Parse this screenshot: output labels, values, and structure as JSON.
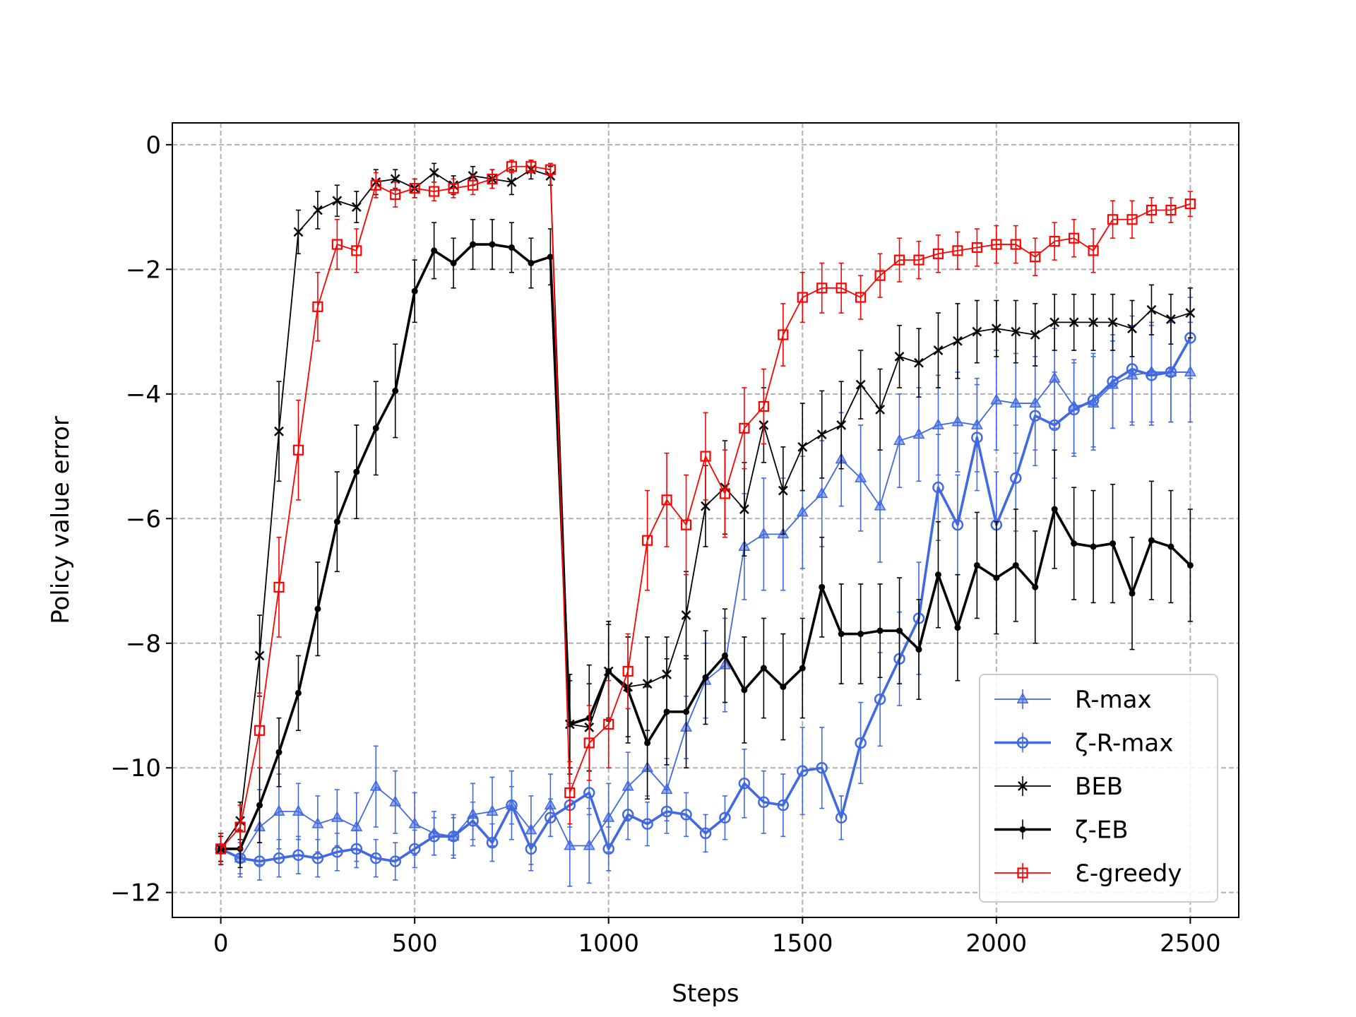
{
  "chart_data": {
    "type": "line",
    "xlabel": "Steps",
    "ylabel": "Policy value error",
    "xlim": [
      -125,
      2625
    ],
    "ylim": [
      -12.4,
      0.35
    ],
    "xticks": [
      0,
      500,
      1000,
      1500,
      2000,
      2500
    ],
    "yticks": [
      0,
      -2,
      -4,
      -6,
      -8,
      -10,
      -12
    ],
    "xtick_labels": [
      "0",
      "500",
      "1000",
      "1500",
      "2000",
      "2500"
    ],
    "ytick_labels": [
      "0",
      "−2",
      "−4",
      "−6",
      "−8",
      "−10",
      "−12"
    ],
    "grid": true,
    "legend_position": "lower right",
    "x": [
      0,
      50,
      100,
      150,
      200,
      250,
      300,
      350,
      400,
      450,
      500,
      550,
      600,
      650,
      700,
      750,
      800,
      850,
      900,
      950,
      1000,
      1050,
      1100,
      1150,
      1200,
      1250,
      1300,
      1350,
      1400,
      1450,
      1500,
      1550,
      1600,
      1650,
      1700,
      1750,
      1800,
      1850,
      1900,
      1950,
      2000,
      2050,
      2100,
      2150,
      2200,
      2250,
      2300,
      2350,
      2400,
      2450,
      2500
    ],
    "series": [
      {
        "name": "R-max",
        "color": "#4169E1",
        "marker": "triangle",
        "line_width": "thin",
        "values": [
          -11.3,
          -11.45,
          -10.95,
          -10.7,
          -10.7,
          -10.9,
          -10.8,
          -10.95,
          -10.3,
          -10.55,
          -10.9,
          -11.05,
          -11.1,
          -10.75,
          -10.7,
          -10.6,
          -11.0,
          -10.6,
          -11.25,
          -11.25,
          -10.8,
          -10.3,
          -10.0,
          -10.35,
          -9.35,
          -8.6,
          -8.35,
          -6.45,
          -6.25,
          -6.25,
          -5.9,
          -5.6,
          -5.05,
          -5.35,
          -5.8,
          -4.75,
          -4.65,
          -4.5,
          -4.45,
          -4.5,
          -4.1,
          -4.15,
          -4.15,
          -3.75,
          -4.2,
          -4.15,
          -3.85,
          -3.7,
          -3.65,
          -3.65,
          -3.65
        ],
        "errors": [
          0.25,
          0.3,
          0.6,
          0.6,
          0.45,
          0.45,
          0.45,
          0.55,
          0.65,
          0.5,
          0.5,
          0.35,
          0.35,
          0.5,
          0.55,
          0.55,
          0.55,
          0.5,
          0.65,
          0.6,
          0.55,
          0.55,
          0.45,
          0.5,
          0.5,
          0.6,
          0.75,
          0.85,
          0.9,
          0.9,
          0.9,
          0.85,
          0.75,
          0.85,
          0.9,
          0.75,
          0.75,
          0.8,
          0.8,
          0.75,
          0.8,
          0.8,
          0.75,
          0.8,
          0.75,
          0.75,
          0.7,
          0.8,
          0.8,
          0.8,
          0.8
        ]
      },
      {
        "name": "ζ-R-max",
        "color": "#4169E1",
        "marker": "circle",
        "line_width": "thick",
        "values": [
          -11.3,
          -11.45,
          -11.5,
          -11.45,
          -11.4,
          -11.45,
          -11.35,
          -11.3,
          -11.45,
          -11.5,
          -11.3,
          -11.1,
          -11.1,
          -10.85,
          -11.2,
          -10.6,
          -11.3,
          -10.8,
          -10.6,
          -10.4,
          -11.3,
          -10.75,
          -10.9,
          -10.7,
          -10.75,
          -11.05,
          -10.8,
          -10.25,
          -10.55,
          -10.6,
          -10.05,
          -10.0,
          -10.8,
          -9.6,
          -8.9,
          -8.25,
          -7.6,
          -5.5,
          -6.1,
          -4.7,
          -6.1,
          -5.35,
          -4.35,
          -4.5,
          -4.25,
          -4.1,
          -3.8,
          -3.6,
          -3.7,
          -3.65,
          -3.1
        ],
        "errors": [
          0.2,
          0.25,
          0.3,
          0.3,
          0.3,
          0.3,
          0.3,
          0.3,
          0.3,
          0.3,
          0.3,
          0.3,
          0.3,
          0.3,
          0.3,
          0.3,
          0.35,
          0.3,
          0.35,
          0.35,
          0.35,
          0.4,
          0.35,
          0.35,
          0.35,
          0.3,
          0.35,
          0.55,
          0.5,
          0.5,
          0.7,
          0.65,
          0.35,
          0.65,
          0.75,
          0.75,
          0.9,
          0.85,
          0.8,
          0.85,
          0.85,
          0.85,
          0.8,
          0.85,
          0.75,
          0.75,
          0.75,
          0.85,
          0.8,
          0.8,
          0.65
        ]
      },
      {
        "name": "BEB",
        "color": "#000000",
        "marker": "x",
        "line_width": "thin",
        "values": [
          -11.3,
          -10.85,
          -8.2,
          -4.6,
          -1.4,
          -1.05,
          -0.9,
          -1.0,
          -0.6,
          -0.55,
          -0.7,
          -0.45,
          -0.65,
          -0.5,
          -0.55,
          -0.6,
          -0.4,
          -0.5,
          -9.3,
          -9.35,
          -8.45,
          -8.7,
          -8.65,
          -8.5,
          -7.55,
          -5.8,
          -5.5,
          -5.85,
          -4.5,
          -5.55,
          -4.85,
          -4.65,
          -4.5,
          -3.85,
          -4.25,
          -3.4,
          -3.5,
          -3.3,
          -3.15,
          -3.0,
          -2.95,
          -3.0,
          -3.05,
          -2.85,
          -2.85,
          -2.85,
          -2.85,
          -2.95,
          -2.65,
          -2.8,
          -2.7
        ],
        "errors": [
          0.25,
          0.3,
          0.65,
          0.8,
          0.35,
          0.3,
          0.25,
          0.25,
          0.2,
          0.15,
          0.15,
          0.15,
          0.15,
          0.15,
          0.15,
          0.2,
          0.15,
          0.15,
          0.7,
          0.7,
          0.8,
          0.8,
          0.75,
          0.6,
          0.7,
          0.65,
          0.75,
          0.75,
          0.6,
          0.7,
          0.7,
          0.7,
          0.7,
          0.55,
          0.65,
          0.5,
          0.55,
          0.6,
          0.6,
          0.5,
          0.45,
          0.5,
          0.5,
          0.45,
          0.45,
          0.45,
          0.45,
          0.45,
          0.4,
          0.4,
          0.4
        ]
      },
      {
        "name": "ζ-EB",
        "color": "#000000",
        "marker": "dot",
        "line_width": "thick",
        "values": [
          -11.3,
          -11.3,
          -10.6,
          -9.75,
          -8.8,
          -7.45,
          -6.05,
          -5.25,
          -4.55,
          -3.95,
          -2.35,
          -1.7,
          -1.9,
          -1.6,
          -1.6,
          -1.65,
          -1.9,
          -1.8,
          -9.3,
          -9.2,
          -8.45,
          -8.75,
          -9.6,
          -9.1,
          -9.1,
          -8.55,
          -8.2,
          -8.75,
          -8.4,
          -8.7,
          -8.4,
          -7.1,
          -7.85,
          -7.85,
          -7.8,
          -7.8,
          -8.1,
          -6.9,
          -7.75,
          -6.75,
          -6.95,
          -6.75,
          -7.1,
          -5.85,
          -6.4,
          -6.45,
          -6.4,
          -7.2,
          -6.35,
          -6.45,
          -6.75
        ],
        "errors": [
          0.2,
          0.3,
          0.6,
          0.55,
          0.6,
          0.75,
          0.8,
          0.75,
          0.75,
          0.75,
          0.5,
          0.45,
          0.4,
          0.4,
          0.4,
          0.4,
          0.4,
          0.45,
          0.8,
          0.85,
          0.75,
          0.85,
          0.9,
          0.85,
          0.9,
          0.75,
          0.75,
          0.85,
          0.8,
          0.85,
          0.8,
          0.8,
          0.8,
          0.8,
          0.75,
          0.85,
          0.8,
          0.85,
          0.85,
          0.85,
          0.9,
          0.9,
          0.9,
          0.95,
          0.9,
          0.9,
          0.95,
          0.9,
          0.95,
          0.9,
          0.9
        ]
      },
      {
        "name": "Ɛ-greedy",
        "color": "#FF0000",
        "marker": "square",
        "line_width": "thin",
        "values": [
          -11.3,
          -10.95,
          -9.4,
          -7.1,
          -4.9,
          -2.6,
          -1.6,
          -1.7,
          -0.65,
          -0.8,
          -0.7,
          -0.75,
          -0.7,
          -0.65,
          -0.55,
          -0.35,
          -0.35,
          -0.4,
          -10.4,
          -9.6,
          -9.3,
          -8.45,
          -6.35,
          -5.7,
          -6.1,
          -5.0,
          -5.6,
          -4.55,
          -4.2,
          -3.05,
          -2.45,
          -2.3,
          -2.3,
          -2.45,
          -2.1,
          -1.85,
          -1.85,
          -1.75,
          -1.7,
          -1.65,
          -1.6,
          -1.6,
          -1.8,
          -1.55,
          -1.5,
          -1.7,
          -1.2,
          -1.2,
          -1.05,
          -1.05,
          -0.95
        ],
        "errors": [
          0.25,
          0.35,
          0.6,
          0.8,
          0.8,
          0.55,
          0.4,
          0.35,
          0.2,
          0.2,
          0.15,
          0.15,
          0.15,
          0.15,
          0.15,
          0.1,
          0.1,
          0.1,
          0.5,
          0.6,
          0.7,
          0.6,
          0.8,
          0.75,
          0.8,
          0.7,
          0.7,
          0.65,
          0.6,
          0.5,
          0.4,
          0.4,
          0.4,
          0.35,
          0.35,
          0.35,
          0.3,
          0.3,
          0.3,
          0.3,
          0.3,
          0.3,
          0.3,
          0.3,
          0.3,
          0.35,
          0.3,
          0.3,
          0.2,
          0.2,
          0.2
        ]
      }
    ]
  }
}
